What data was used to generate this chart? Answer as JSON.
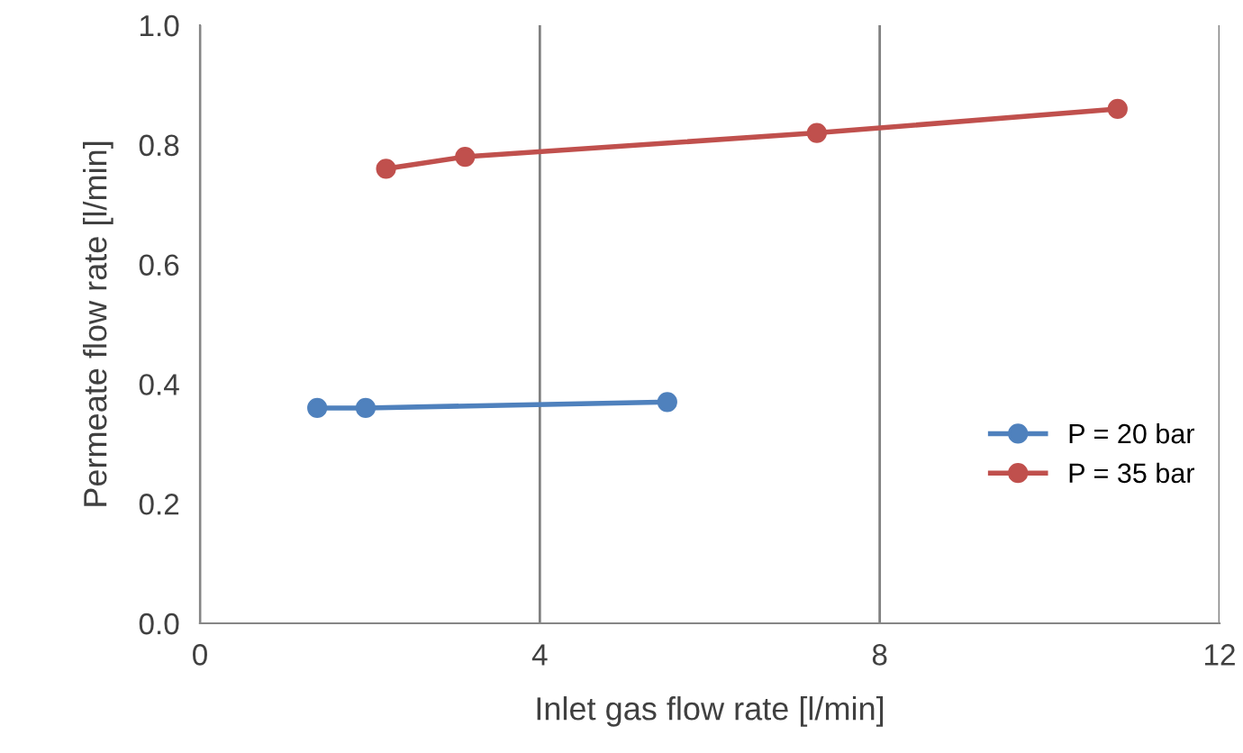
{
  "chart_data": {
    "type": "line",
    "xlabel": "Inlet gas flow rate [l/min]",
    "ylabel": "Permeate flow rate [l/min]",
    "xlim": [
      0,
      12
    ],
    "xticks": [
      0,
      4,
      8,
      12
    ],
    "ylim": [
      0.0,
      1.0
    ],
    "yticks": [
      {
        "value": 0.0,
        "label": "0.0"
      },
      {
        "value": 0.2,
        "label": "0.2"
      },
      {
        "value": 0.4,
        "label": "0.4"
      },
      {
        "value": 0.6,
        "label": "0.6"
      },
      {
        "value": 0.8,
        "label": "0.8"
      },
      {
        "value": 1.0,
        "label": "1.0"
      }
    ],
    "grid": "x",
    "legend": "right",
    "marker": "circle",
    "line_style": "solid",
    "series": [
      {
        "name": "P = 20 bar",
        "color": "#4f81bd",
        "x": [
          1.38,
          1.95,
          5.5
        ],
        "values": [
          0.36,
          0.36,
          0.37
        ]
      },
      {
        "name": "P = 35 bar",
        "color": "#c0504d",
        "x": [
          2.19,
          3.12,
          7.26,
          10.8
        ],
        "values": [
          0.76,
          0.78,
          0.82,
          0.86
        ]
      }
    ]
  }
}
